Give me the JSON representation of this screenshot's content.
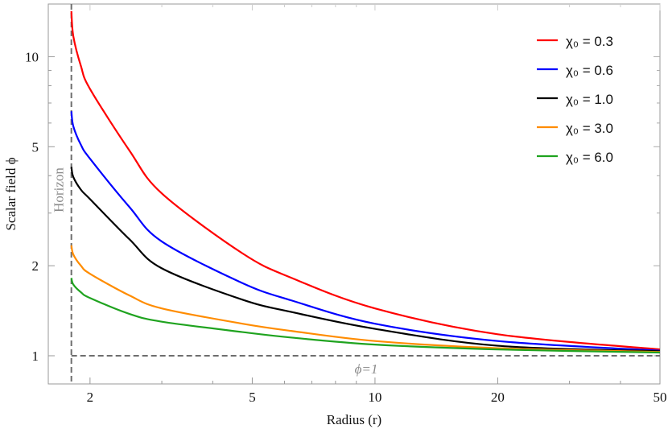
{
  "chart_data": {
    "type": "line",
    "title": "",
    "xlabel": "Radius (r)",
    "ylabel": "Scalar field ϕ",
    "x_scale": "log",
    "y_scale": "log",
    "xlim": [
      1.58,
      50
    ],
    "ylim": [
      0.805,
      15
    ],
    "x_ticks": [
      2,
      5,
      10,
      20,
      50
    ],
    "y_ticks": [
      1,
      2,
      5,
      10
    ],
    "grid": false,
    "legend_position": "top-right",
    "annotations": {
      "horizon": {
        "label": "Horizon",
        "x": 1.8,
        "color": "#6e6e6e"
      },
      "phi_one": {
        "label": "ϕ=1",
        "y": 1,
        "color": "#6e6e6e"
      }
    },
    "series": [
      {
        "name": "χ₀ = 0.3",
        "color": "#ff0000",
        "x": [
          1.8,
          1.82,
          1.9,
          2,
          2.5,
          3,
          4.73,
          6.25,
          10,
          20,
          50
        ],
        "y": [
          14.2,
          11.7,
          9.3,
          7.8,
          4.85,
          3.49,
          2.2,
          1.82,
          1.44,
          1.18,
          1.05
        ]
      },
      {
        "name": "χ₀ = 0.6",
        "color": "#0000ff",
        "x": [
          1.8,
          1.82,
          1.9,
          2,
          2.5,
          3,
          4.73,
          6.25,
          10,
          20,
          50
        ],
        "y": [
          6.57,
          5.85,
          5.07,
          4.56,
          3.14,
          2.41,
          1.75,
          1.53,
          1.28,
          1.12,
          1.04
        ]
      },
      {
        "name": "χ₀ = 1.0",
        "color": "#000000",
        "x": [
          1.8,
          1.82,
          1.9,
          2,
          2.5,
          3,
          4.73,
          6.25,
          10,
          20,
          50
        ],
        "y": [
          4.28,
          3.96,
          3.59,
          3.34,
          2.45,
          1.96,
          1.54,
          1.4,
          1.23,
          1.08,
          1.035
        ]
      },
      {
        "name": "χ₀ = 3.0",
        "color": "#ff8c00",
        "x": [
          1.8,
          1.82,
          1.9,
          2,
          2.5,
          3,
          4.73,
          6.25,
          10,
          20,
          50
        ],
        "y": [
          2.34,
          2.18,
          2.0,
          1.88,
          1.59,
          1.44,
          1.28,
          1.21,
          1.12,
          1.06,
          1.03
        ]
      },
      {
        "name": "χ₀ = 6.0",
        "color": "#1fa31f",
        "x": [
          1.8,
          1.82,
          1.9,
          2,
          2.5,
          3,
          4.73,
          6.25,
          10,
          20,
          50
        ],
        "y": [
          1.82,
          1.73,
          1.63,
          1.56,
          1.38,
          1.3,
          1.2,
          1.15,
          1.09,
          1.05,
          1.025
        ]
      }
    ]
  }
}
